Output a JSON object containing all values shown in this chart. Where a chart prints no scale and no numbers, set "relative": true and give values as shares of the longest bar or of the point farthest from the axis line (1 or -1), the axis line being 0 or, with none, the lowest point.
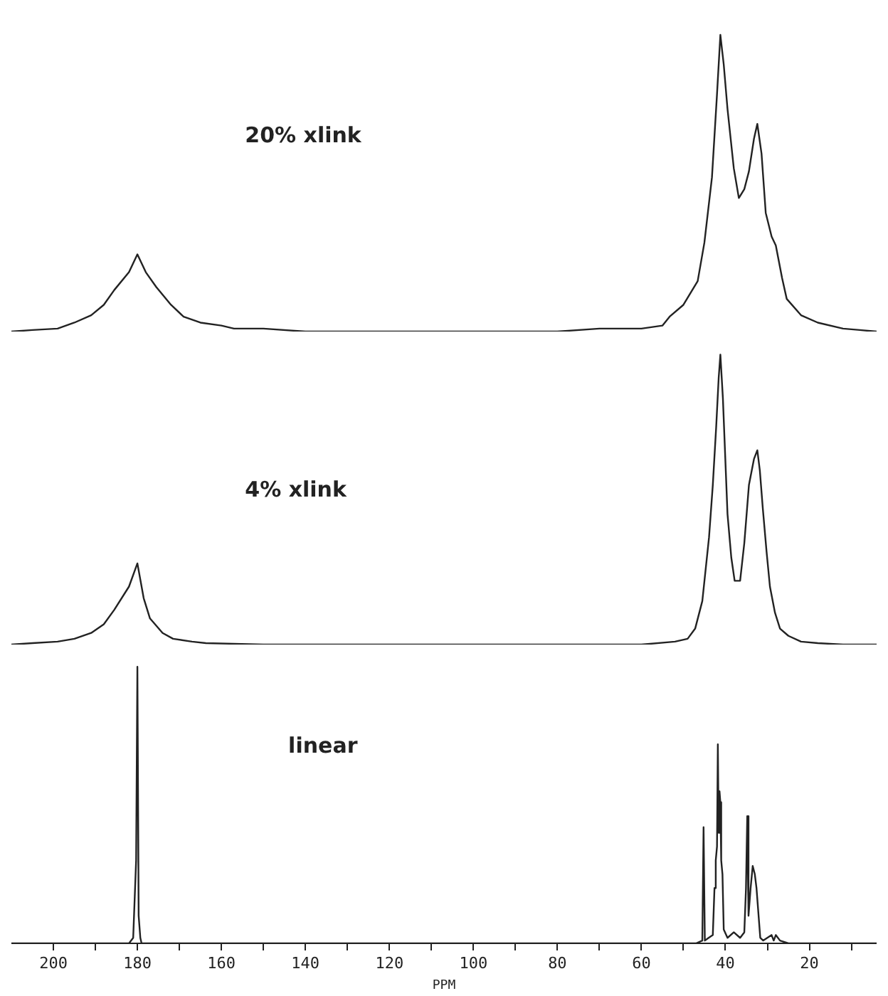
{
  "chart_data": [
    {
      "type": "line",
      "relative": true,
      "xlim": [
        210,
        4
      ],
      "tick_labels": false,
      "grid": false,
      "legend": false,
      "marker": "none",
      "series": [
        {
          "name": "20% xlink",
          "color": "#222222",
          "x": [
            210,
            205,
            199,
            195,
            191,
            188,
            185.5,
            182,
            180,
            178,
            175.5,
            172,
            169,
            165,
            160,
            157,
            150,
            140,
            120,
            100,
            80,
            70,
            60,
            55,
            53.3,
            50,
            46.6,
            45,
            43.2,
            42,
            41.2,
            40.4,
            39.5,
            38,
            36.8,
            35.5,
            34.4,
            33.2,
            32.4,
            31.4,
            30.4,
            29,
            28,
            26.5,
            25.4,
            22,
            18,
            12,
            8,
            4
          ],
          "values": [
            0,
            0.005,
            0.01,
            0.03,
            0.055,
            0.09,
            0.14,
            0.2,
            0.26,
            0.2,
            0.15,
            0.09,
            0.05,
            0.03,
            0.02,
            0.01,
            0.01,
            0,
            0,
            0,
            0,
            0.01,
            0.01,
            0.02,
            0.05,
            0.09,
            0.17,
            0.3,
            0.52,
            0.8,
            1.0,
            0.9,
            0.75,
            0.55,
            0.45,
            0.48,
            0.54,
            0.65,
            0.7,
            0.6,
            0.4,
            0.32,
            0.29,
            0.18,
            0.11,
            0.055,
            0.03,
            0.01,
            0.005,
            0
          ]
        }
      ]
    },
    {
      "type": "line",
      "relative": true,
      "xlim": [
        210,
        4
      ],
      "tick_labels": false,
      "grid": false,
      "legend": false,
      "marker": "none",
      "series": [
        {
          "name": "4% xlink",
          "color": "#222222",
          "x": [
            210,
            205,
            199,
            195,
            191,
            188,
            185.5,
            182,
            180,
            178.5,
            177,
            174,
            171.5,
            167,
            163.7,
            150,
            120,
            100,
            80,
            60,
            52,
            49,
            47.2,
            45.5,
            43.9,
            43,
            42.2,
            41.6,
            41.2,
            40.6,
            39.5,
            38.6,
            37.8,
            36.5,
            35.5,
            34.4,
            33.2,
            32.4,
            31.8,
            31.1,
            30.2,
            29.4,
            28.2,
            27,
            25,
            22,
            18,
            12,
            4
          ],
          "values": [
            0,
            0.005,
            0.01,
            0.02,
            0.04,
            0.07,
            0.12,
            0.2,
            0.28,
            0.16,
            0.09,
            0.04,
            0.02,
            0.01,
            0.005,
            0,
            0,
            0,
            0,
            0,
            0.01,
            0.02,
            0.055,
            0.15,
            0.37,
            0.55,
            0.75,
            0.92,
            1.0,
            0.85,
            0.45,
            0.3,
            0.22,
            0.22,
            0.35,
            0.55,
            0.64,
            0.67,
            0.6,
            0.47,
            0.32,
            0.2,
            0.11,
            0.055,
            0.03,
            0.01,
            0.005,
            0,
            0
          ]
        }
      ]
    },
    {
      "type": "line",
      "relative": true,
      "xlim": [
        210,
        4
      ],
      "tick_labels": "x",
      "grid": false,
      "legend": false,
      "marker": "none",
      "xlabel": "PPM",
      "xticks": [
        200,
        {
          "value": 190,
          "label": null
        },
        180,
        {
          "value": 170,
          "label": null
        },
        160,
        {
          "value": 150,
          "label": null
        },
        140,
        {
          "value": 130,
          "label": null
        },
        120,
        {
          "value": 110,
          "label": null
        },
        100,
        {
          "value": 90,
          "label": null
        },
        80,
        {
          "value": 70,
          "label": null
        },
        60,
        {
          "value": 50,
          "label": null
        },
        40,
        {
          "value": 30,
          "label": null
        },
        20,
        {
          "value": 10,
          "label": null
        }
      ],
      "series": [
        {
          "name": "linear",
          "color": "#222222",
          "x": [
            210,
            190,
            182,
            181,
            180.3,
            180,
            179.7,
            179.3,
            179,
            170,
            120,
            80,
            60,
            48,
            47,
            45.5,
            45.2,
            44.9,
            44,
            43,
            42.6,
            42.3,
            42,
            41.8,
            41.6,
            41.4,
            41.2,
            41,
            40.7,
            40.4,
            39.5,
            38,
            36.5,
            35.5,
            35.1,
            34.8,
            34.5,
            34,
            33.5,
            33,
            32.6,
            32.2,
            31.7,
            31,
            29,
            28.5,
            28,
            27,
            25,
            4
          ],
          "values": [
            0,
            0,
            0,
            0.02,
            0.3,
            1.0,
            0.1,
            0.02,
            0,
            0,
            0,
            0,
            0,
            0,
            0,
            0.01,
            0.42,
            0.01,
            0.02,
            0.03,
            0.2,
            0.3,
            0.35,
            0.72,
            0.4,
            0.55,
            0.51,
            0.3,
            0.25,
            0.05,
            0.02,
            0.04,
            0.02,
            0.04,
            0.2,
            0.46,
            0.1,
            0.2,
            0.28,
            0.25,
            0.2,
            0.12,
            0.02,
            0.01,
            0.03,
            0.01,
            0.03,
            0.01,
            0,
            0
          ]
        }
      ]
    }
  ]
}
